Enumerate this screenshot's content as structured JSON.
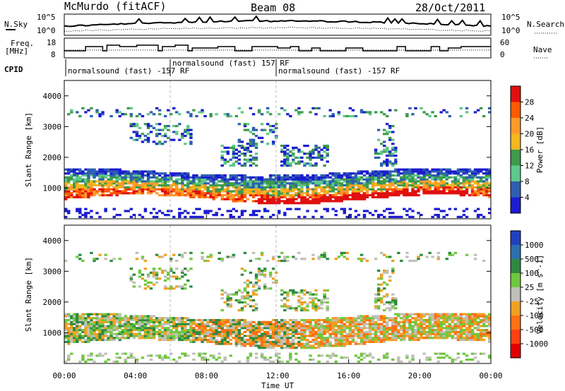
{
  "header": {
    "station": "McMurdo (fitACF)",
    "beam": "Beam 08",
    "date": "28/Oct/2011"
  },
  "top_strip": {
    "left_label": "N.Sky",
    "left_ticks": [
      "10^5",
      "10^0"
    ],
    "right_label": "N.Search",
    "right_ticks": [
      "10^5",
      "10^0"
    ]
  },
  "freq_strip": {
    "left_label_1": "Freq.",
    "left_label_2": "[MHz]",
    "left_ticks": [
      "18",
      "8"
    ],
    "right_label": "Nave",
    "right_ticks": [
      "60",
      "0"
    ]
  },
  "cpid": {
    "label": "CPID",
    "segments": [
      {
        "text": "normalsound (fast) -157 RF"
      },
      {
        "text": "normalsound (fast) 157 RF"
      },
      {
        "text": "normalsound (fast) -157 RF"
      }
    ]
  },
  "power_panel": {
    "ylabel": "Slant Range [km]",
    "yticks": [
      "4000",
      "3000",
      "2000",
      "1000"
    ],
    "colorbar_label": "Power [dB]",
    "colorbar_ticks": [
      "28",
      "24",
      "20",
      "16",
      "12",
      "8",
      "4"
    ],
    "colorbar_colors": [
      "#e01010",
      "#ff5a00",
      "#ff9a28",
      "#f2b81e",
      "#3e9a4c",
      "#5dc98a",
      "#2e5fb0",
      "#1c1cd0"
    ]
  },
  "velocity_panel": {
    "ylabel": "Slant Range [km]",
    "yticks": [
      "4000",
      "3000",
      "2000",
      "1000"
    ],
    "colorbar_label": "Velocity [m s^-1]",
    "colorbar_ticks": [
      "1000",
      "500",
      "100",
      "25",
      "-25",
      "-100",
      "-500",
      "-1000"
    ],
    "colorbar_colors": [
      "#2040c0",
      "#2a70b0",
      "#2e8a40",
      "#70c840",
      "#c0c0b8",
      "#f0a020",
      "#ff7010",
      "#ff4010",
      "#e00000"
    ]
  },
  "xaxis": {
    "label": "Time UT",
    "ticks": [
      "00:00",
      "04:00",
      "08:00",
      "12:00",
      "16:00",
      "20:00",
      "00:00"
    ]
  }
}
